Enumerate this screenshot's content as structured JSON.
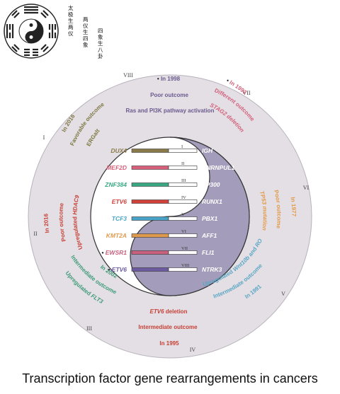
{
  "logo_text": {
    "col1": "太极生两仪",
    "col2": "两仪生四象",
    "col3": "四象生八卦"
  },
  "roman_numerals": [
    "I",
    "II",
    "III",
    "IV",
    "V",
    "VI",
    "VII",
    "VIII"
  ],
  "outer_ring": {
    "top": {
      "mark": "•",
      "year": "In 1998",
      "outcome": "Poor outcome",
      "feature": "Ras and PI3K pathway activation"
    },
    "top_right": {
      "year": "In 1993",
      "outcome": "Different outcome",
      "feature": "STAG2 deletion"
    },
    "right": {
      "year": "In 1977",
      "outcome": "Poor outcome",
      "feature": "TP53 mutation"
    },
    "bottom_right": {
      "feature_a": "Upregulated ",
      "feature_gene": "Wnt10b",
      "feature_b": " and ",
      "feature_gene2": "ROR1",
      "outcome": "Intermediate outcome",
      "year": "In 1991"
    },
    "bottom": {
      "feature_gene": "ETV6",
      "feature_b": " deletion",
      "outcome": "Intermediate outcome",
      "year": "In 1995"
    },
    "bottom_left": {
      "feature_a": "Upregulated ",
      "feature_gene": "FLT3",
      "outcome": "Intermediate outcome",
      "year": "In 2002"
    },
    "left": {
      "year": "In 2016",
      "outcome": "Poor outcome",
      "feature_a": "Upregulated ",
      "feature_gene": "HDAC9"
    },
    "top_left": {
      "year": "In 2016",
      "outcome": "Favorable outcome",
      "feature": "ERGalt"
    }
  },
  "fusions": [
    {
      "numeral": "I",
      "left": "DUX4",
      "right": "IGH",
      "color": "#8a7a4a",
      "mark": ""
    },
    {
      "numeral": "II",
      "left": "MEF2D",
      "right": "HNRNPUL1",
      "color": "#d9607a",
      "mark": ""
    },
    {
      "numeral": "III",
      "left": "ZNF384",
      "right": "EP300",
      "color": "#3aa882",
      "mark": ""
    },
    {
      "numeral": "IV",
      "left": "ETV6",
      "right": "RUNX1",
      "color": "#d2413a",
      "mark": ""
    },
    {
      "numeral": "V",
      "left": "TCF3",
      "right": "PBX1",
      "color": "#4aa3c8",
      "mark": ""
    },
    {
      "numeral": "VI",
      "left": "KMT2A",
      "right": "AFF1",
      "color": "#e09a4e",
      "mark": ""
    },
    {
      "numeral": "VII",
      "left": "EWSR1",
      "right": "FLI1",
      "color": "#c8607e",
      "mark": "•"
    },
    {
      "numeral": "VIII",
      "left": "ETV6",
      "right": "NTRK3",
      "color": "#6c5ba0",
      "mark": "•"
    }
  ],
  "colors": {
    "outer_disk": "#e3dfe4",
    "yin": "#a39cba",
    "yang": "#ffffff",
    "text_purple": "#6a5a8e",
    "text_olive": "#7c7640",
    "text_pink": "#d4607c",
    "text_orange": "#e39a48",
    "text_blue": "#5aa6c4",
    "text_red": "#c74036",
    "text_green": "#3e9a78",
    "text_dark": "#1a1a2e"
  },
  "caption": "Transcription factor gene rearrangements in cancers"
}
